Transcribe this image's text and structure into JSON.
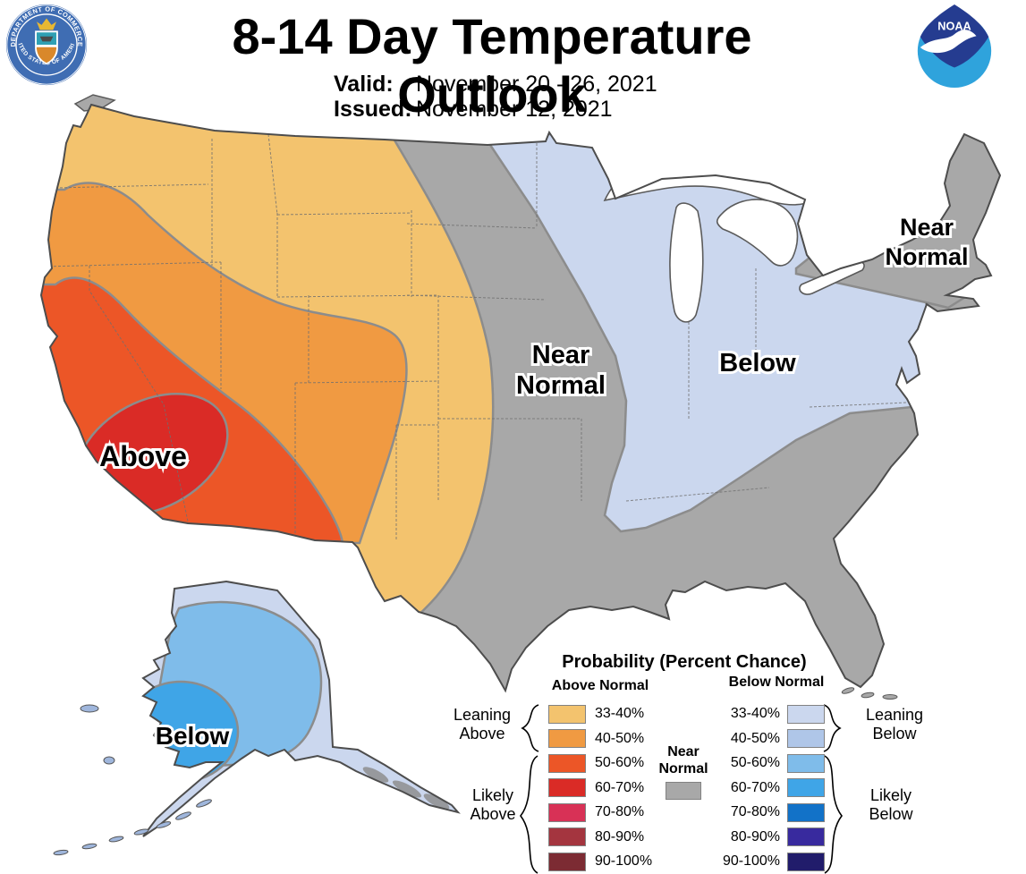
{
  "header": {
    "title": "8-14 Day Temperature Outlook",
    "valid_label": "Valid:",
    "valid_value": "November 20 - 26, 2021",
    "issued_label": "Issued:",
    "issued_value": "November 12, 2021",
    "noaa_logo_text": "NOAA",
    "doc_seal": {
      "top_text": "DEPARTMENT OF COMMERCE",
      "bottom_text": "UNITED STATES OF AMERICA"
    }
  },
  "map_labels": {
    "west_above": "Above",
    "central_near_line1": "Near",
    "central_near_line2": "Normal",
    "east_below": "Below",
    "northeast_near_line1": "Near",
    "northeast_near_line2": "Normal",
    "alaska_below": "Below"
  },
  "legend": {
    "title": "Probability (Percent Chance)",
    "above_header": "Above Normal",
    "below_header": "Below Normal",
    "leaning_above_line1": "Leaning",
    "leaning_above_line2": "Above",
    "likely_above_line1": "Likely",
    "likely_above_line2": "Above",
    "leaning_below_line1": "Leaning",
    "leaning_below_line2": "Below",
    "likely_below_line1": "Likely",
    "likely_below_line2": "Below",
    "near_normal_line1": "Near",
    "near_normal_line2": "Normal",
    "above_rows": [
      {
        "range": "33-40%",
        "color": "#F3C36E"
      },
      {
        "range": "40-50%",
        "color": "#F09A42"
      },
      {
        "range": "50-60%",
        "color": "#EC5627"
      },
      {
        "range": "60-70%",
        "color": "#DA2B26"
      },
      {
        "range": "70-80%",
        "color": "#D83156"
      },
      {
        "range": "80-90%",
        "color": "#A4353F"
      },
      {
        "range": "90-100%",
        "color": "#7C2B33"
      }
    ],
    "below_rows": [
      {
        "range": "33-40%",
        "color": "#CBD7EE"
      },
      {
        "range": "40-50%",
        "color": "#AFC6E8"
      },
      {
        "range": "50-60%",
        "color": "#7FBCEA"
      },
      {
        "range": "60-70%",
        "color": "#3FA5E7"
      },
      {
        "range": "70-80%",
        "color": "#1272C8"
      },
      {
        "range": "80-90%",
        "color": "#382A9E"
      },
      {
        "range": "90-100%",
        "color": "#211C6B"
      }
    ]
  },
  "colors": {
    "above_33_40": "#F3C36E",
    "above_40_50": "#F09A42",
    "above_50_60": "#EC5627",
    "above_60_70": "#DA2B26",
    "below_33_40": "#CBD7EE",
    "below_50_60": "#7FBCEA",
    "below_60_70": "#3FA5E7",
    "near_normal": "#A8A8A8",
    "water_white": "#FFFFFF",
    "noaa_dark_blue": "#253C90",
    "noaa_light_blue": "#2FA3DC",
    "seal_blue": "#3F6DB3",
    "seal_gold": "#E8B832",
    "seal_teal": "#2FA0B4",
    "seal_orange": "#D9882B"
  },
  "map_regions": [
    {
      "area": "West / Southwest CONUS",
      "outlook": "Above normal",
      "probability": "33-70%"
    },
    {
      "area": "Central CONUS, Southeast, New England",
      "outlook": "Near normal",
      "probability": ""
    },
    {
      "area": "Upper Midwest, Ohio Valley, Mid-Atlantic",
      "outlook": "Below normal",
      "probability": "33-40%"
    },
    {
      "area": "Western Alaska",
      "outlook": "Below normal",
      "probability": "33-70%"
    }
  ]
}
